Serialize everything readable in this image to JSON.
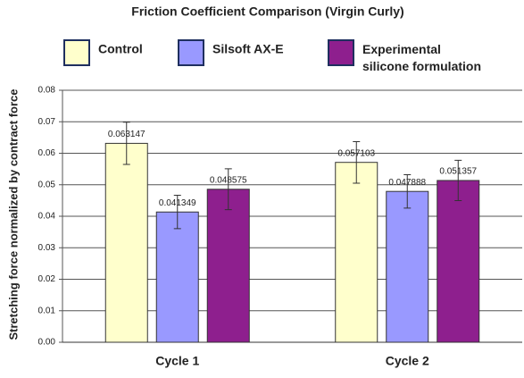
{
  "chart_data": {
    "type": "bar",
    "title": "Friction Coefficient Comparison (Virgin Curly)",
    "y_label": "Stretching force normalized by contract force",
    "categories": [
      "Cycle 1",
      "Cycle 2"
    ],
    "series": [
      {
        "name": "Control",
        "color": "#ffffcc",
        "values": [
          0.063147,
          0.057103
        ],
        "errors": [
          0.0067,
          0.0066
        ]
      },
      {
        "name": "Silsoft AX-E",
        "color": "#9999ff",
        "values": [
          0.041349,
          0.047888
        ],
        "errors": [
          0.0053,
          0.0053
        ]
      },
      {
        "name": "Experimental silicone formulation",
        "color": "#8e1f8e",
        "values": [
          0.048575,
          0.051357
        ],
        "errors": [
          0.0065,
          0.0064
        ]
      }
    ],
    "ylim": [
      0,
      0.08
    ],
    "yticks": [
      {
        "value": 0,
        "label": "0.00"
      },
      0.01,
      0.02,
      0.03,
      0.04,
      0.05,
      0.06,
      0.07,
      0.08
    ],
    "grid": true
  }
}
